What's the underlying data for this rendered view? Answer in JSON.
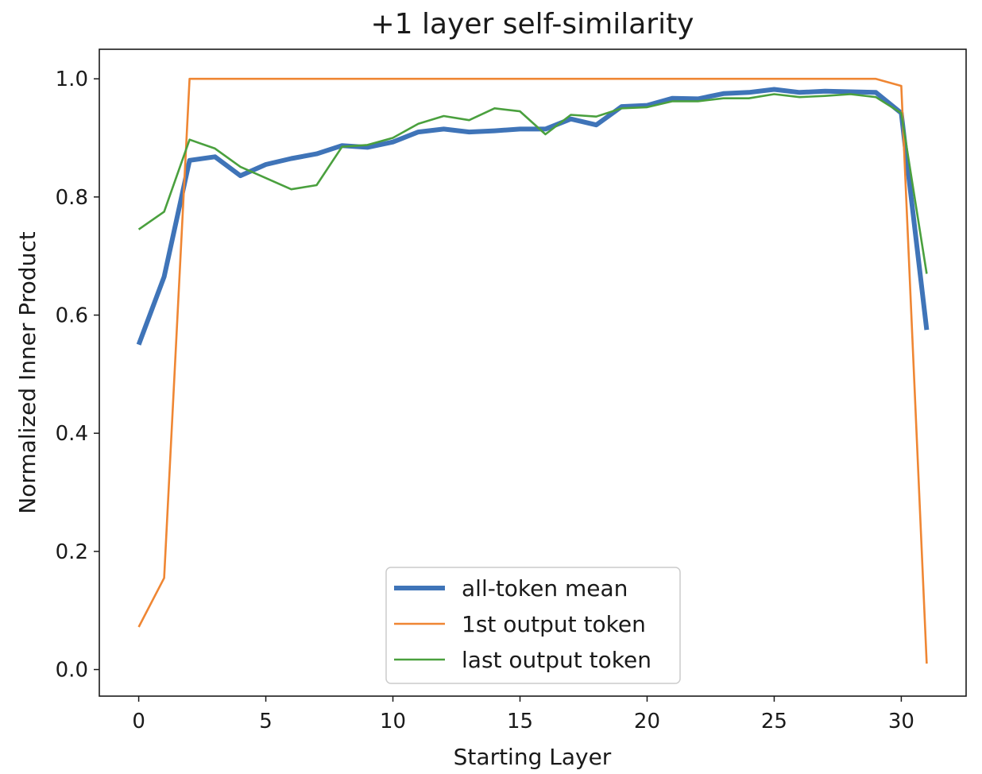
{
  "chart_data": {
    "type": "line",
    "title": "+1 layer self-similarity",
    "xlabel": "Starting Layer",
    "ylabel": "Normalized Inner Product",
    "xlim": [
      -1.55,
      32.55
    ],
    "ylim": [
      -0.045,
      1.05
    ],
    "xticks": [
      0,
      5,
      10,
      15,
      20,
      25,
      30
    ],
    "yticks": [
      0.0,
      0.2,
      0.4,
      0.6,
      0.8,
      1.0
    ],
    "ytick_labels": [
      "0.0",
      "0.2",
      "0.4",
      "0.6",
      "0.8",
      "1.0"
    ],
    "grid": false,
    "legend_position": "bottom-center",
    "x": [
      0,
      1,
      2,
      3,
      4,
      5,
      6,
      7,
      8,
      9,
      10,
      11,
      12,
      13,
      14,
      15,
      16,
      17,
      18,
      19,
      20,
      21,
      22,
      23,
      24,
      25,
      26,
      27,
      28,
      29,
      30,
      31
    ],
    "series": [
      {
        "name": "all-token mean",
        "color": "#3f74b8",
        "values": [
          0.55,
          0.665,
          0.862,
          0.868,
          0.836,
          0.855,
          0.865,
          0.873,
          0.887,
          0.884,
          0.893,
          0.91,
          0.915,
          0.91,
          0.912,
          0.915,
          0.915,
          0.932,
          0.922,
          0.953,
          0.955,
          0.967,
          0.966,
          0.975,
          0.977,
          0.982,
          0.977,
          0.979,
          0.978,
          0.977,
          0.942,
          0.575
        ]
      },
      {
        "name": "1st output token",
        "color": "#ef8633",
        "values": [
          0.072,
          0.155,
          1.0,
          1.0,
          1.0,
          1.0,
          1.0,
          1.0,
          1.0,
          1.0,
          1.0,
          1.0,
          1.0,
          1.0,
          1.0,
          1.0,
          1.0,
          1.0,
          1.0,
          1.0,
          1.0,
          1.0,
          1.0,
          1.0,
          1.0,
          1.0,
          1.0,
          1.0,
          1.0,
          1.0,
          0.988,
          0.01
        ]
      },
      {
        "name": "last output token",
        "color": "#4aa03e",
        "values": [
          0.745,
          0.775,
          0.897,
          0.882,
          0.851,
          0.832,
          0.813,
          0.82,
          0.885,
          0.888,
          0.9,
          0.924,
          0.937,
          0.93,
          0.95,
          0.945,
          0.906,
          0.939,
          0.936,
          0.95,
          0.952,
          0.962,
          0.962,
          0.967,
          0.967,
          0.974,
          0.969,
          0.971,
          0.974,
          0.969,
          0.942,
          0.67
        ]
      }
    ]
  }
}
